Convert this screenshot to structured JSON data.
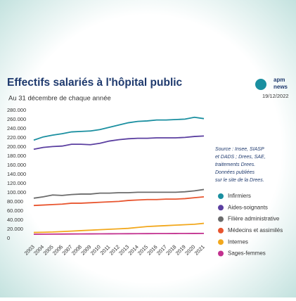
{
  "chart_data": {
    "type": "line",
    "title": "Effectifs salariés à l'hôpital public",
    "subtitle": "Au 31 décembre de chaque année",
    "date": "19/12/2022",
    "logo": [
      "apm",
      "news"
    ],
    "source_lines": [
      "Source : Insee, SIASP",
      "et DADS ; Drees, SAE,",
      "traitements Drees.",
      "Données publiées",
      "sur le site de la Drees."
    ],
    "categories": [
      "2003",
      "2004",
      "2005",
      "2006",
      "2007",
      "2008",
      "2009",
      "2010",
      "2011",
      "2012",
      "2013",
      "2014",
      "2015",
      "2016",
      "2017",
      "2018",
      "2019",
      "2020",
      "2021"
    ],
    "series": [
      {
        "name": "Infirmiers",
        "color": "#1a8fa0",
        "values": [
          215000,
          222000,
          226000,
          229000,
          233000,
          234000,
          235000,
          238000,
          243000,
          248000,
          253000,
          256000,
          257000,
          259000,
          259000,
          260000,
          261000,
          265000,
          262000
        ]
      },
      {
        "name": "Aides-soignants",
        "color": "#5b3fa0",
        "values": [
          195000,
          199000,
          201000,
          202000,
          206000,
          206000,
          205000,
          208000,
          213000,
          216000,
          218000,
          219000,
          219000,
          220000,
          220000,
          220000,
          221000,
          223000,
          224000
        ]
      },
      {
        "name": "Filière administrative",
        "color": "#6b6b6b",
        "values": [
          88000,
          91000,
          95000,
          94000,
          96000,
          97000,
          97000,
          99000,
          99000,
          100000,
          100000,
          101000,
          101000,
          101000,
          101000,
          101000,
          102000,
          104000,
          107000
        ]
      },
      {
        "name": "Médecins et assimilés",
        "color": "#e8552f",
        "values": [
          72000,
          73000,
          74000,
          75000,
          77000,
          77000,
          78000,
          79000,
          80000,
          81000,
          83000,
          84000,
          85000,
          85000,
          86000,
          86000,
          87000,
          89000,
          91000
        ]
      },
      {
        "name": "Internes",
        "color": "#f2a81d",
        "values": [
          13000,
          13500,
          14000,
          15000,
          16000,
          17000,
          18000,
          19000,
          20000,
          21000,
          22000,
          24000,
          26000,
          27000,
          28000,
          29000,
          30000,
          31000,
          33000
        ]
      },
      {
        "name": "Sages-femmes",
        "color": "#c2318f",
        "values": [
          9000,
          9200,
          9400,
          9500,
          9700,
          9800,
          9900,
          10000,
          10100,
          10200,
          10300,
          10400,
          10500,
          10600,
          10600,
          10700,
          10800,
          10900,
          11000
        ]
      }
    ],
    "ylim": [
      0,
      280000
    ],
    "yticks": [
      0,
      {
        "value": 20000,
        "label": "20.000"
      },
      {
        "value": 40000,
        "label": "40.000"
      },
      {
        "value": 60000,
        "label": "60.000"
      },
      {
        "value": 80000,
        "label": "80.000"
      },
      {
        "value": 100000,
        "label": "100.000"
      },
      {
        "value": 120000,
        "label": "120.000"
      },
      {
        "value": 140000,
        "label": "140.000"
      },
      {
        "value": 160000,
        "label": "160.000"
      },
      {
        "value": 180000,
        "label": "180.000"
      },
      {
        "value": 200000,
        "label": "200.000"
      },
      {
        "value": 220000,
        "label": "220.000"
      },
      {
        "value": 240000,
        "label": "240.000"
      },
      {
        "value": 260000,
        "label": "260.000"
      },
      {
        "value": 280000,
        "label": "280.000"
      }
    ],
    "grid": false
  }
}
